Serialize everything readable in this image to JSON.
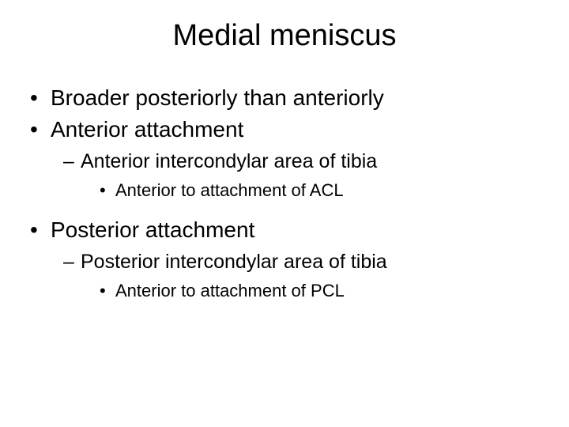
{
  "title": "Medial meniscus",
  "items": {
    "l1_1": "Broader posteriorly than anteriorly",
    "l1_2": "Anterior attachment",
    "l2_1": "Anterior intercondylar area of tibia",
    "l3_1": "Anterior to attachment of ACL",
    "l1_3": "Posterior attachment",
    "l2_2": "Posterior intercondylar area of tibia",
    "l3_2": "Anterior to attachment of PCL"
  },
  "bullets": {
    "dot": "•",
    "dash": "–"
  },
  "style": {
    "background_color": "#ffffff",
    "text_color": "#000000",
    "title_fontsize": 38,
    "level1_fontsize": 28,
    "level2_fontsize": 25,
    "level3_fontsize": 22,
    "font_family": "Arial"
  }
}
